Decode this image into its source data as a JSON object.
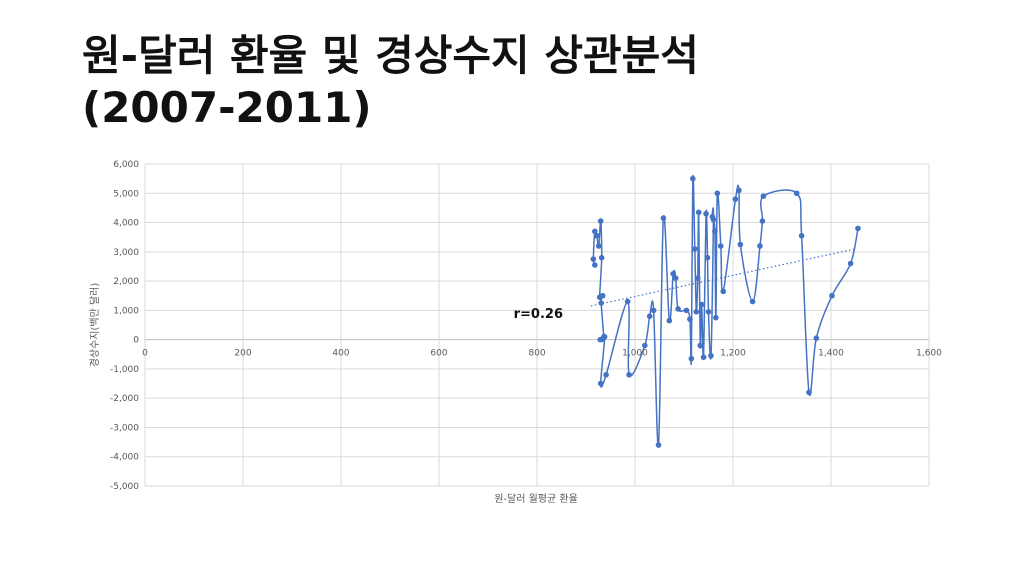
{
  "slide": {
    "title_line1": "원-달러 환율 및 경상수지 상관분석",
    "title_line2": "(2007-2011)"
  },
  "chart_data": {
    "type": "scatter",
    "xlabel": "원-달러 월평균 환율",
    "ylabel": "경상수지(백만 달러)",
    "xlim": [
      0,
      1600
    ],
    "ylim": [
      -5000,
      6000
    ],
    "x_ticks": [
      0,
      200,
      400,
      600,
      800,
      1000,
      1200,
      1400,
      1600
    ],
    "y_ticks": [
      -5000,
      -4000,
      -3000,
      -2000,
      -1000,
      0,
      1000,
      2000,
      3000,
      4000,
      5000,
      6000
    ],
    "x_tick_labels": [
      "0",
      "200",
      "400",
      "600",
      "800",
      "1,000",
      "1,200",
      "1,400",
      "1,600"
    ],
    "y_tick_labels": [
      "-5,000",
      "-4,000",
      "-3,000",
      "-2,000",
      "-1,000",
      "0",
      "1,000",
      "2,000",
      "3,000",
      "4,000",
      "5,000",
      "6,000"
    ],
    "grid": true,
    "connected_smooth": true,
    "annotation": "r=0.26",
    "colors": {
      "series": "#4472c4",
      "grid": "#d9d9d9",
      "text": "#595959"
    },
    "trendline": {
      "x": [
        910,
        1450
      ],
      "y": [
        1150,
        3100
      ],
      "style": "dotted"
    },
    "points": [
      [
        918,
        2550
      ],
      [
        915,
        2750
      ],
      [
        918,
        3700
      ],
      [
        922,
        3550
      ],
      [
        926,
        3200
      ],
      [
        930,
        4050
      ],
      [
        932,
        2800
      ],
      [
        928,
        1450
      ],
      [
        934,
        1500
      ],
      [
        931,
        1250
      ],
      [
        936,
        50
      ],
      [
        929,
        0
      ],
      [
        938,
        100
      ],
      [
        930,
        -1500
      ],
      [
        941,
        -1200
      ],
      [
        985,
        1300
      ],
      [
        988,
        -1200
      ],
      [
        1020,
        -200
      ],
      [
        1030,
        800
      ],
      [
        1038,
        1000
      ],
      [
        1048,
        -3600
      ],
      [
        1058,
        4150
      ],
      [
        1070,
        650
      ],
      [
        1078,
        2250
      ],
      [
        1083,
        2100
      ],
      [
        1088,
        1050
      ],
      [
        1105,
        1000
      ],
      [
        1112,
        700
      ],
      [
        1115,
        -650
      ],
      [
        1118,
        5500
      ],
      [
        1122,
        3100
      ],
      [
        1125,
        950
      ],
      [
        1128,
        2100
      ],
      [
        1130,
        4350
      ],
      [
        1133,
        -200
      ],
      [
        1136,
        1200
      ],
      [
        1140,
        -600
      ],
      [
        1145,
        4300
      ],
      [
        1148,
        2800
      ],
      [
        1150,
        950
      ],
      [
        1155,
        -550
      ],
      [
        1160,
        4100
      ],
      [
        1158,
        4200
      ],
      [
        1163,
        3700
      ],
      [
        1165,
        750
      ],
      [
        1168,
        5000
      ],
      [
        1175,
        3200
      ],
      [
        1180,
        1650
      ],
      [
        1205,
        4800
      ],
      [
        1212,
        5100
      ],
      [
        1215,
        3250
      ],
      [
        1240,
        1300
      ],
      [
        1255,
        3200
      ],
      [
        1260,
        4050
      ],
      [
        1262,
        4900
      ],
      [
        1330,
        5000
      ],
      [
        1340,
        3550
      ],
      [
        1355,
        -1800
      ],
      [
        1370,
        50
      ],
      [
        1402,
        1500
      ],
      [
        1440,
        2600
      ],
      [
        1455,
        3800
      ]
    ]
  }
}
